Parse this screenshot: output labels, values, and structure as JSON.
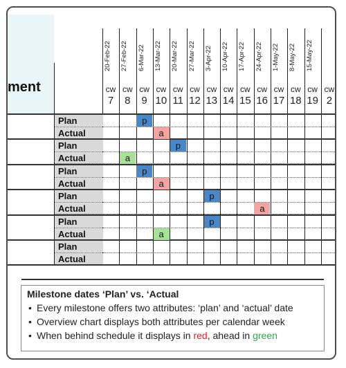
{
  "header": {
    "left_label": "ment",
    "dates": [
      "20-Feb-22",
      "27-Feb-22",
      "6-Mar-22",
      "13-Mar-22",
      "20-Mar-22",
      "27-Mar-22",
      "3-Apr-22",
      "10-Apr-22",
      "17-Apr-22",
      "24-Apr-22",
      "1-May-22",
      "8-May-22",
      "15-May-22",
      ""
    ],
    "cw_label": "cw",
    "weeks": [
      "7",
      "8",
      "9",
      "10",
      "11",
      "12",
      "13",
      "14",
      "15",
      "16",
      "17",
      "18",
      "19",
      "2"
    ]
  },
  "row_labels": {
    "plan": "Plan",
    "actual": "Actual"
  },
  "colors": {
    "plan": "#4b86c6",
    "actual_behind": "#f4a3a3",
    "actual_ahead": "#a8e09a",
    "late_text": "#e02020",
    "early_text": "#2ca84a"
  },
  "milestones": [
    {
      "plan": {
        "letter": "p",
        "week": 9
      },
      "actual": {
        "letter": "a",
        "week": 10,
        "status": "behind"
      }
    },
    {
      "plan": {
        "letter": "p",
        "week": 11
      },
      "actual": {
        "letter": "a",
        "week": 8,
        "status": "ahead"
      }
    },
    {
      "plan": {
        "letter": "p",
        "week": 9
      },
      "actual": {
        "letter": "a",
        "week": 10,
        "status": "behind"
      }
    },
    {
      "plan": {
        "letter": "p",
        "week": 13
      },
      "actual": {
        "letter": "a",
        "week": 16,
        "status": "behind"
      }
    },
    {
      "plan": {
        "letter": "p",
        "week": 13
      },
      "actual": {
        "letter": "a",
        "week": 10,
        "status": "ahead"
      }
    },
    {
      "plan": null,
      "actual": null
    }
  ],
  "note": {
    "title": "Milestone dates ‘Plan’ vs. ‘Actual",
    "bullet1": "Every milestone offers two attributes: ‘plan’ and ‘actual’ date",
    "bullet2": "Overview chart displays both attributes per calendar week",
    "bullet3_a": "When behind schedule it displays in ",
    "bullet3_red": "red",
    "bullet3_b": ", ahead in ",
    "bullet3_green": "green"
  }
}
